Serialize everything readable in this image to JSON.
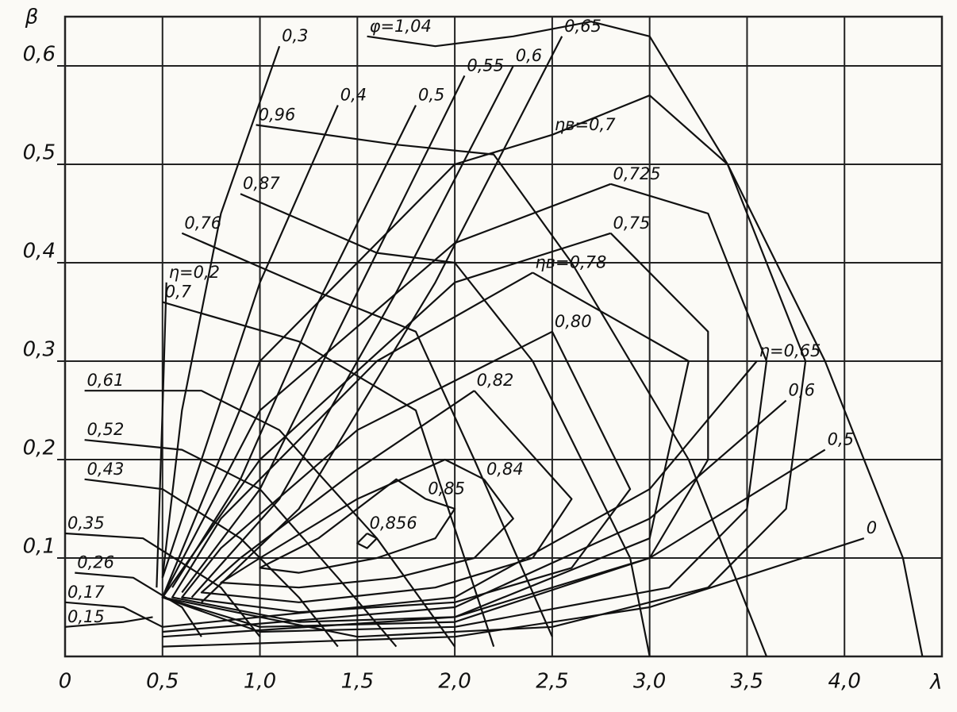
{
  "chart_data": {
    "type": "contour",
    "x_label": "λ",
    "y_label": "β",
    "xlim": [
      0,
      4.5
    ],
    "ylim": [
      0,
      0.65
    ],
    "xticks": [
      {
        "value": 0,
        "label": "0"
      },
      {
        "value": 0.5,
        "label": "0,5"
      },
      {
        "value": 1.0,
        "label": "1,0"
      },
      {
        "value": 1.5,
        "label": "1,5"
      },
      {
        "value": 2.0,
        "label": "2,0"
      },
      {
        "value": 2.5,
        "label": "2,5"
      },
      {
        "value": 3.0,
        "label": "3,0"
      },
      {
        "value": 3.5,
        "label": "3,5"
      },
      {
        "value": 4.0,
        "label": "4,0"
      }
    ],
    "yticks": [
      {
        "value": 0.1,
        "label": "0,1"
      },
      {
        "value": 0.2,
        "label": "0,2"
      },
      {
        "value": 0.3,
        "label": "0,3"
      },
      {
        "value": 0.4,
        "label": "0,4"
      },
      {
        "value": 0.5,
        "label": "0,5"
      },
      {
        "value": 0.6,
        "label": "0,6"
      }
    ],
    "grid": true,
    "series": [
      {
        "name": "0,856",
        "color": "#111111",
        "x": [
          1.55,
          1.6,
          1.55,
          1.5,
          1.55
        ],
        "values": [
          0.125,
          0.12,
          0.11,
          0.115,
          0.125
        ]
      },
      {
        "name": "0,85",
        "color": "#111111",
        "x": [
          1.85,
          2.0,
          1.9,
          1.6,
          1.2,
          1.0,
          1.3,
          1.7,
          1.85
        ],
        "values": [
          0.16,
          0.15,
          0.12,
          0.1,
          0.085,
          0.09,
          0.12,
          0.18,
          0.16
        ]
      },
      {
        "name": "0,84",
        "color": "#111111",
        "x": [
          2.15,
          2.3,
          2.1,
          1.7,
          1.2,
          0.8,
          1.0,
          1.5,
          1.95,
          2.15
        ],
        "values": [
          0.18,
          0.14,
          0.1,
          0.08,
          0.07,
          0.075,
          0.1,
          0.16,
          0.2,
          0.18
        ]
      },
      {
        "name": "0,82",
        "color": "#111111",
        "x": [
          2.1,
          2.6,
          2.4,
          1.9,
          1.2,
          0.7,
          0.9,
          1.5,
          2.1
        ],
        "values": [
          0.27,
          0.16,
          0.1,
          0.07,
          0.055,
          0.065,
          0.1,
          0.19,
          0.27
        ]
      },
      {
        "name": "0,80",
        "color": "#111111",
        "x": [
          2.5,
          2.9,
          2.6,
          2.0,
          1.2,
          0.6,
          0.8,
          1.5,
          2.5
        ],
        "values": [
          0.33,
          0.17,
          0.09,
          0.055,
          0.045,
          0.06,
          0.11,
          0.23,
          0.33
        ]
      },
      {
        "name": "ηв=0,78",
        "color": "#111111",
        "x": [
          2.4,
          3.2,
          3.0,
          2.0,
          1.2,
          0.55,
          0.8,
          1.6,
          2.4
        ],
        "values": [
          0.39,
          0.3,
          0.12,
          0.04,
          0.035,
          0.06,
          0.14,
          0.3,
          0.39
        ]
      },
      {
        "name": "0,75",
        "color": "#111111",
        "x": [
          2.8,
          3.3,
          3.3,
          3.0,
          2.0,
          1.0,
          0.5,
          1.0,
          2.0,
          2.8
        ],
        "values": [
          0.43,
          0.33,
          0.2,
          0.1,
          0.035,
          0.03,
          0.06,
          0.2,
          0.38,
          0.43
        ]
      },
      {
        "name": "0,725",
        "color": "#111111",
        "x": [
          2.8,
          3.3,
          3.6,
          3.5,
          3.1,
          2.0,
          1.0,
          0.5,
          1.0,
          2.0,
          2.8
        ],
        "values": [
          0.48,
          0.45,
          0.3,
          0.15,
          0.07,
          0.03,
          0.025,
          0.06,
          0.25,
          0.42,
          0.48
        ]
      },
      {
        "name": "ηв=0,7",
        "color": "#111111",
        "x": [
          2.5,
          3.0,
          3.4,
          3.8,
          3.7,
          3.3,
          2.5,
          1.5,
          0.5,
          1.0,
          2.0,
          2.5
        ],
        "values": [
          0.53,
          0.57,
          0.5,
          0.3,
          0.15,
          0.07,
          0.03,
          0.02,
          0.06,
          0.3,
          0.5,
          0.53
        ]
      },
      {
        "name": "0,3",
        "color": "#111111",
        "x": [
          1.1,
          0.8,
          0.6,
          0.5
        ],
        "values": [
          0.62,
          0.45,
          0.25,
          0.08
        ]
      },
      {
        "name": "0,4",
        "color": "#111111",
        "x": [
          1.4,
          1.0,
          0.7,
          0.5
        ],
        "values": [
          0.56,
          0.38,
          0.2,
          0.08
        ]
      },
      {
        "name": "0,5",
        "color": "#111111",
        "x": [
          1.8,
          1.3,
          0.9,
          0.55
        ],
        "values": [
          0.56,
          0.36,
          0.18,
          0.07
        ]
      },
      {
        "name": "0,55",
        "color": "#111111",
        "x": [
          2.05,
          1.5,
          1.0,
          0.6
        ],
        "values": [
          0.59,
          0.37,
          0.17,
          0.065
        ]
      },
      {
        "name": "0,6",
        "color": "#111111",
        "x": [
          2.3,
          1.7,
          1.1,
          0.65
        ],
        "values": [
          0.6,
          0.37,
          0.16,
          0.06
        ]
      },
      {
        "name": "0,65",
        "color": "#111111",
        "x": [
          2.55,
          1.9,
          1.2,
          0.7
        ],
        "values": [
          0.63,
          0.38,
          0.15,
          0.055
        ]
      },
      {
        "name": "φ=1,04",
        "color": "#111111",
        "x": [
          1.55,
          1.9,
          2.3,
          2.7,
          3.0,
          3.4,
          3.9,
          4.3,
          4.4
        ],
        "values": [
          0.63,
          0.62,
          0.63,
          0.645,
          0.63,
          0.5,
          0.3,
          0.1,
          0.0
        ]
      },
      {
        "name": "η=0,2",
        "color": "#111111",
        "x": [
          0.52,
          0.5,
          0.47
        ],
        "values": [
          0.38,
          0.25,
          0.07
        ]
      },
      {
        "name": "0,96",
        "color": "#111111",
        "x": [
          0.98,
          1.7,
          2.2,
          2.6,
          3.2,
          3.6
        ],
        "values": [
          0.54,
          0.52,
          0.51,
          0.4,
          0.2,
          0.0
        ]
      },
      {
        "name": "0,87",
        "color": "#111111",
        "x": [
          0.9,
          1.6,
          2.0,
          2.4,
          2.9,
          3.0
        ],
        "values": [
          0.47,
          0.41,
          0.4,
          0.3,
          0.1,
          0.0
        ]
      },
      {
        "name": "0,76",
        "color": "#111111",
        "x": [
          0.6,
          1.3,
          1.8,
          2.1,
          2.5
        ],
        "values": [
          0.43,
          0.37,
          0.33,
          0.2,
          0.02
        ]
      },
      {
        "name": "0,7",
        "color": "#111111",
        "x": [
          0.5,
          1.2,
          1.8,
          2.2
        ],
        "values": [
          0.36,
          0.32,
          0.25,
          0.01
        ]
      },
      {
        "name": "0,61",
        "color": "#111111",
        "x": [
          0.1,
          0.7,
          1.1,
          1.6,
          2.0
        ],
        "values": [
          0.27,
          0.27,
          0.23,
          0.12,
          0.01
        ]
      },
      {
        "name": "0,52",
        "color": "#111111",
        "x": [
          0.1,
          0.6,
          1.0,
          1.4,
          1.7
        ],
        "values": [
          0.22,
          0.21,
          0.17,
          0.08,
          0.01
        ]
      },
      {
        "name": "0,43",
        "color": "#111111",
        "x": [
          0.1,
          0.5,
          0.9,
          1.2,
          1.4
        ],
        "values": [
          0.18,
          0.17,
          0.12,
          0.06,
          0.01
        ]
      },
      {
        "name": "0,35",
        "color": "#111111",
        "x": [
          0.0,
          0.4,
          0.8,
          1.0
        ],
        "values": [
          0.125,
          0.12,
          0.07,
          0.02
        ]
      },
      {
        "name": "0,26",
        "color": "#111111",
        "x": [
          0.05,
          0.35,
          0.6,
          0.7
        ],
        "values": [
          0.085,
          0.08,
          0.05,
          0.02
        ]
      },
      {
        "name": "0,17",
        "color": "#111111",
        "x": [
          0.0,
          0.3,
          0.5
        ],
        "values": [
          0.055,
          0.05,
          0.03
        ]
      },
      {
        "name": "0,15",
        "color": "#111111",
        "x": [
          0.0,
          0.3,
          0.45
        ],
        "values": [
          0.03,
          0.035,
          0.04
        ]
      },
      {
        "name": "η=0,65",
        "color": "#111111",
        "x": [
          3.55,
          3.0,
          2.0,
          0.5
        ],
        "values": [
          0.3,
          0.17,
          0.06,
          0.03
        ]
      },
      {
        "name": "0,6",
        "color": "#111111",
        "x": [
          3.7,
          3.0,
          2.0,
          0.5
        ],
        "values": [
          0.26,
          0.14,
          0.05,
          0.025
        ]
      },
      {
        "name": "0,5",
        "color": "#111111",
        "x": [
          3.9,
          3.0,
          2.0,
          0.5
        ],
        "values": [
          0.21,
          0.1,
          0.04,
          0.02
        ]
      },
      {
        "name": "0",
        "color": "#111111",
        "x": [
          4.1,
          3.0,
          2.0,
          0.5
        ],
        "values": [
          0.12,
          0.05,
          0.02,
          0.01
        ]
      }
    ]
  }
}
